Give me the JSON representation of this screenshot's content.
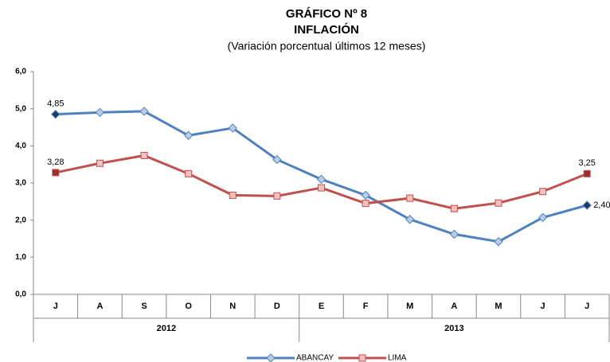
{
  "chart_data": {
    "type": "line",
    "title": "GRÁFICO Nº 8",
    "title2": "INFLACIÓN",
    "subtitle": "(Variación porcentual últimos 12 meses)",
    "categories": [
      "J",
      "A",
      "S",
      "O",
      "N",
      "D",
      "E",
      "F",
      "M",
      "A",
      "M",
      "J",
      "J"
    ],
    "groups": [
      {
        "label": "2012",
        "count": 6
      },
      {
        "label": "2013",
        "count": 7
      }
    ],
    "series": [
      {
        "name": "ABANCAY",
        "color": "#4f81bd",
        "marker": "diamond",
        "marker_fill": "#b9cde5",
        "label_fill": "#1f3864",
        "values": [
          4.85,
          4.9,
          4.93,
          4.28,
          4.48,
          3.63,
          3.1,
          2.67,
          2.02,
          1.62,
          1.42,
          2.07,
          2.4
        ],
        "value_labels": [
          "4,85",
          null,
          null,
          null,
          null,
          null,
          null,
          null,
          null,
          null,
          null,
          null,
          "2,40"
        ]
      },
      {
        "name": "LIMA",
        "color": "#c0504d",
        "marker": "square",
        "marker_fill": "#f2c0bf",
        "label_fill": "#9b2d2a",
        "values": [
          3.28,
          3.53,
          3.74,
          3.25,
          2.67,
          2.65,
          2.87,
          2.45,
          2.59,
          2.31,
          2.46,
          2.77,
          3.25
        ],
        "value_labels": [
          "3,28",
          null,
          null,
          null,
          null,
          null,
          null,
          null,
          null,
          null,
          null,
          null,
          "3,25"
        ]
      }
    ],
    "ylim": [
      0,
      6
    ],
    "yticks": [
      {
        "value": 0,
        "label": "0,0"
      },
      {
        "value": 1,
        "label": "1,0"
      },
      {
        "value": 2,
        "label": "2,0"
      },
      {
        "value": 3,
        "label": "3,0"
      },
      {
        "value": 4,
        "label": "4,0"
      },
      {
        "value": 5,
        "label": "5,0"
      },
      {
        "value": 6,
        "label": "6,0"
      }
    ],
    "grid": false,
    "legend": "bottom"
  }
}
